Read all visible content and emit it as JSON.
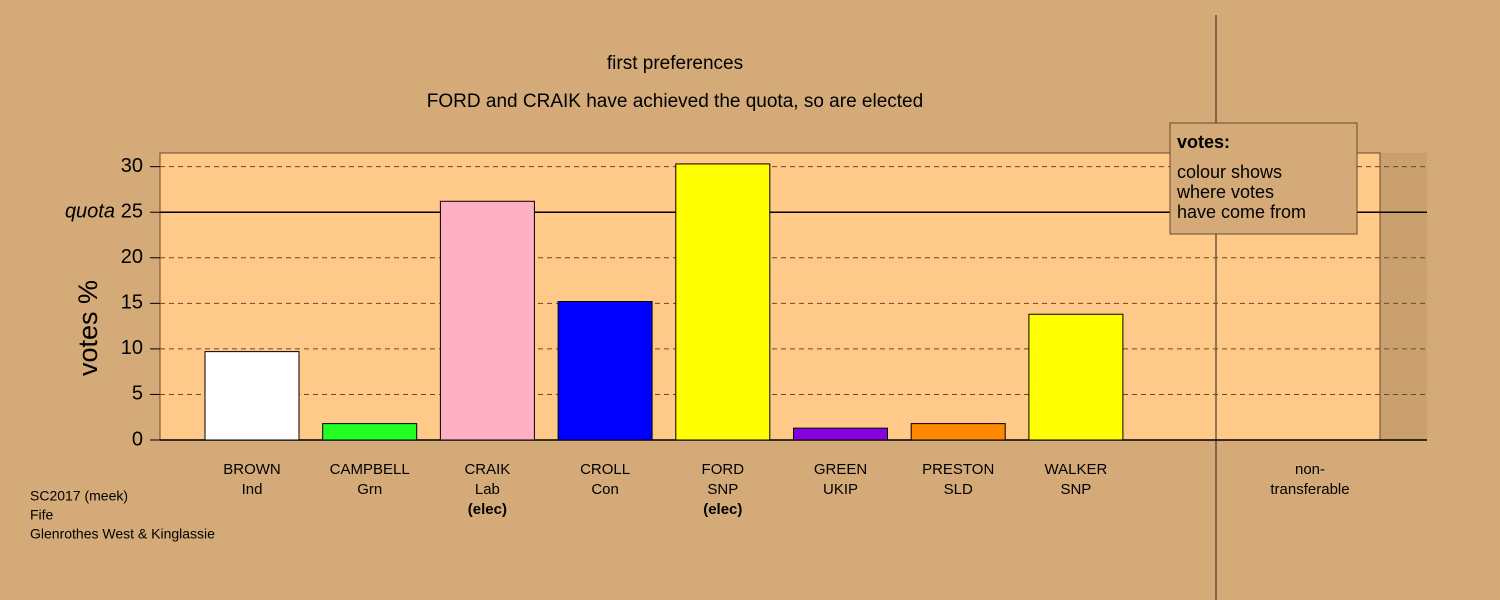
{
  "chart_data": {
    "type": "bar",
    "title": "first preferences",
    "subtitle": "FORD and CRAIK have achieved the quota, so are elected",
    "y_label": "votes %",
    "categories": [
      "BROWN",
      "CAMPBELL",
      "CRAIK",
      "CROLL",
      "FORD",
      "GREEN",
      "PRESTON",
      "WALKER",
      "non-"
    ],
    "parties": [
      "Ind",
      "Grn",
      "Lab",
      "Con",
      "SNP",
      "UKIP",
      "SLD",
      "SNP",
      "transferable"
    ],
    "notes": [
      null,
      null,
      "(elec)",
      null,
      "(elec)",
      null,
      null,
      null,
      null
    ],
    "values": [
      9.7,
      1.8,
      26.2,
      15.2,
      30.3,
      1.3,
      1.8,
      13.8,
      0
    ],
    "colors": [
      "#ffffff",
      "#22ff22",
      "#ffb0c4",
      "#0000ff",
      "#ffff00",
      "#8800dd",
      "#ff8800",
      "#ffff00",
      "#808080"
    ],
    "ylim": [
      0,
      31.5
    ],
    "yticks": [
      0,
      5,
      10,
      15,
      20,
      25,
      30
    ],
    "grid": true,
    "quota": {
      "label": "quota",
      "value": 25
    },
    "legend": {
      "title": "votes:",
      "lines": [
        "colour shows",
        "where votes",
        "have come from"
      ]
    },
    "footnotes": [
      "SC2017 (meek)",
      "Fife",
      "Glenrothes West & Kinglassie"
    ]
  }
}
